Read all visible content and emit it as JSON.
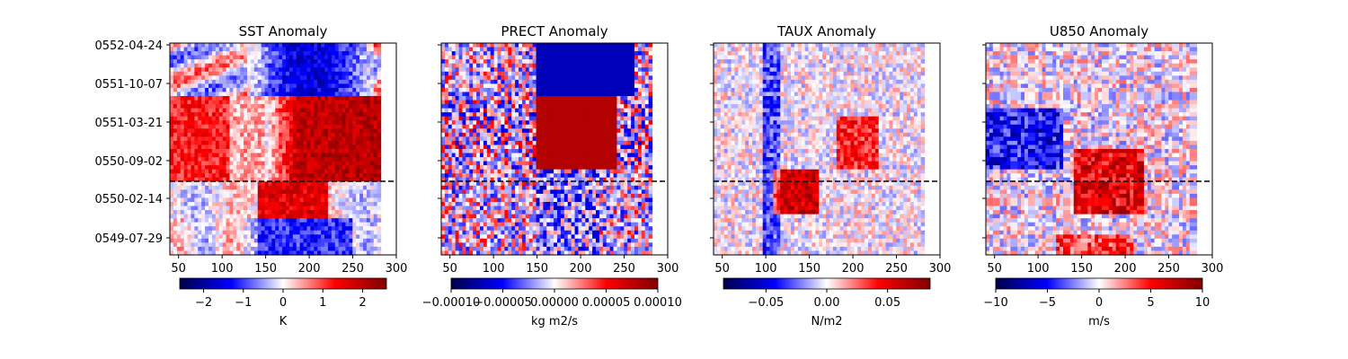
{
  "chart_data": [
    {
      "type": "heatmap",
      "title": "SST Anomaly",
      "x_ticks": [
        "50",
        "100",
        "150",
        "200",
        "250",
        "300"
      ],
      "y_ticks": [
        "0552-04-24",
        "0551-10-07",
        "0551-03-21",
        "0550-09-02",
        "0550-02-14",
        "0549-07-29"
      ],
      "colorbar": {
        "label": "K",
        "ticks": [
          "−2",
          "−1",
          "0",
          "1",
          "2"
        ],
        "range": [
          -2.6,
          2.6
        ],
        "colormap": "seismic"
      },
      "dashed_line": "0550-06-10"
    },
    {
      "type": "heatmap",
      "title": "PRECT Anomaly",
      "x_ticks": [
        "50",
        "100",
        "150",
        "200",
        "250",
        "300"
      ],
      "y_ticks": [
        "0552-04-24",
        "0551-10-07",
        "0551-03-21",
        "0550-09-02",
        "0550-02-14",
        "0549-07-29"
      ],
      "colorbar": {
        "label": "kg m2/s",
        "ticks": [
          "−0.00010",
          "−0.00005",
          "0.00000",
          "0.00005",
          "0.00010"
        ],
        "range": [
          -0.0001,
          0.0001
        ],
        "colormap": "seismic"
      },
      "dashed_line": "0550-06-10"
    },
    {
      "type": "heatmap",
      "title": "TAUX Anomaly",
      "x_ticks": [
        "50",
        "100",
        "150",
        "200",
        "250",
        "300"
      ],
      "y_ticks": [
        "0552-04-24",
        "0551-10-07",
        "0551-03-21",
        "0550-09-02",
        "0550-02-14",
        "0549-07-29"
      ],
      "colorbar": {
        "label": "N/m2",
        "ticks": [
          "−0.05",
          "0.00",
          "0.05"
        ],
        "range": [
          -0.085,
          0.085
        ],
        "colormap": "seismic"
      },
      "dashed_line": "0550-06-10"
    },
    {
      "type": "heatmap",
      "title": "U850 Anomaly",
      "x_ticks": [
        "50",
        "100",
        "150",
        "200",
        "250",
        "300"
      ],
      "y_ticks": [
        "0552-04-24",
        "0551-10-07",
        "0551-03-21",
        "0550-09-02",
        "0550-02-14",
        "0549-07-29"
      ],
      "colorbar": {
        "label": "m/s",
        "ticks": [
          "−10",
          "−5",
          "0",
          "5",
          "10"
        ],
        "range": [
          -10,
          10
        ],
        "colormap": "seismic"
      },
      "dashed_line": "0550-06-10"
    }
  ]
}
